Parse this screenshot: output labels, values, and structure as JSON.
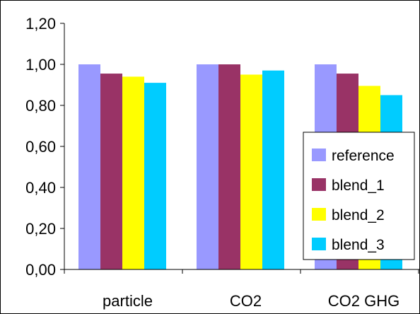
{
  "chart_data": {
    "type": "bar",
    "categories": [
      "particle",
      "CO2",
      "CO2 GHG"
    ],
    "series": [
      {
        "name": "reference",
        "values": [
          1.0,
          1.0,
          1.0
        ],
        "color": "#9999ff"
      },
      {
        "name": "blend_1",
        "values": [
          0.955,
          1.0,
          0.955
        ],
        "color": "#993366"
      },
      {
        "name": "blend_2",
        "values": [
          0.94,
          0.95,
          0.895
        ],
        "color": "#ffff00"
      },
      {
        "name": "blend_3",
        "values": [
          0.91,
          0.97,
          0.85
        ],
        "color": "#00ccff"
      }
    ],
    "ylim": [
      0,
      1.2
    ],
    "yticks": [
      "0,00",
      "0,20",
      "0,40",
      "0,60",
      "0,80",
      "1,00",
      "1,20"
    ],
    "title": "",
    "xlabel": "",
    "ylabel": "",
    "grid": false,
    "legend_position": "right"
  }
}
